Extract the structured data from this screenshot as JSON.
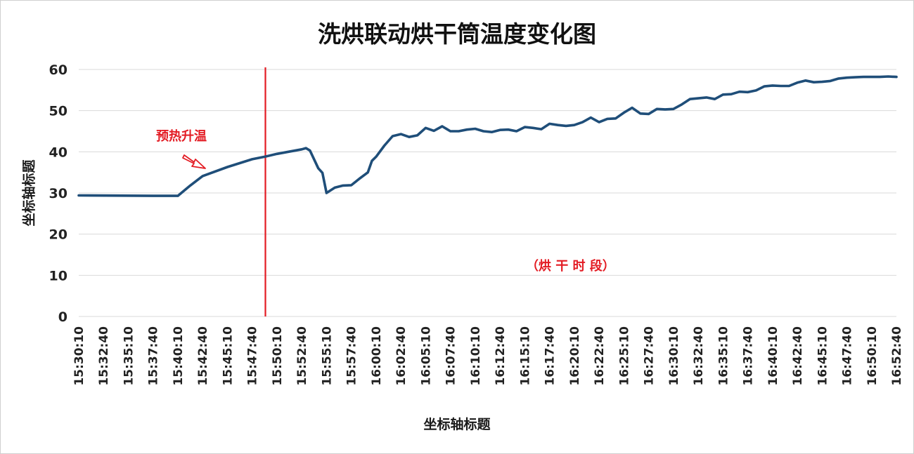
{
  "chart_data": {
    "type": "line",
    "title": "洗烘联动烘干筒温度变化图",
    "xlabel": "坐标轴标题",
    "ylabel": "坐标轴标题",
    "ylim": [
      0,
      60
    ],
    "yticks": [
      0,
      10,
      20,
      30,
      40,
      50,
      60
    ],
    "grid": "horizontal",
    "legend": "none",
    "colors": {
      "line": "#1f4e79",
      "marker_line": "#e31b23",
      "annotation": "#e31b23",
      "grid": "#d9d9d9"
    },
    "x_tick_labels": [
      "15:30:10",
      "15:32:40",
      "15:35:10",
      "15:37:40",
      "15:40:10",
      "15:42:40",
      "15:45:10",
      "15:47:40",
      "15:50:10",
      "15:52:40",
      "15:55:10",
      "15:57:40",
      "16:00:10",
      "16:02:40",
      "16:05:10",
      "16:07:40",
      "16:10:10",
      "16:12:40",
      "16:15:10",
      "16:17:40",
      "16:20:10",
      "16:22:40",
      "16:25:10",
      "16:27:40",
      "16:30:10",
      "16:32:40",
      "16:35:10",
      "16:37:40",
      "16:40:10",
      "16:42:40",
      "16:45:10",
      "16:47:40",
      "16:50:10",
      "16:52:40"
    ],
    "series": [
      {
        "x": [
          "15:30:10",
          "15:37:40",
          "15:40:10",
          "15:41:25",
          "15:42:40",
          "15:45:10",
          "15:47:40",
          "15:48:55",
          "15:50:10",
          "15:52:40",
          "15:53:05",
          "15:53:30",
          "15:54:20",
          "15:54:45",
          "15:55:10",
          "15:56:00",
          "15:56:50",
          "15:57:40",
          "15:58:30",
          "15:59:20",
          "15:59:45",
          "16:00:10",
          "16:01:00",
          "16:01:50",
          "16:02:40",
          "16:03:30",
          "16:04:20",
          "16:05:10",
          "16:06:00",
          "16:06:50",
          "16:07:40",
          "16:08:30",
          "16:09:20",
          "16:10:10",
          "16:11:00",
          "16:11:50",
          "16:12:40",
          "16:13:30",
          "16:14:20",
          "16:15:10",
          "16:16:00",
          "16:16:50",
          "16:17:40",
          "16:18:30",
          "16:19:20",
          "16:20:10",
          "16:21:00",
          "16:21:50",
          "16:22:40",
          "16:23:30",
          "16:24:20",
          "16:25:10",
          "16:26:00",
          "16:26:50",
          "16:27:40",
          "16:28:30",
          "16:29:20",
          "16:30:10",
          "16:31:00",
          "16:31:50",
          "16:32:40",
          "16:33:30",
          "16:34:20",
          "16:35:10",
          "16:36:00",
          "16:36:50",
          "16:37:40",
          "16:38:30",
          "16:39:20",
          "16:40:10",
          "16:41:00",
          "16:41:50",
          "16:42:40",
          "16:43:30",
          "16:44:20",
          "16:45:10",
          "16:46:00",
          "16:46:50",
          "16:47:40",
          "16:48:30",
          "16:49:20",
          "16:50:10",
          "16:51:00",
          "16:51:50",
          "16:52:40"
        ],
        "values": [
          29.4,
          29.3,
          29.3,
          31.8,
          34.1,
          36.3,
          38.2,
          38.8,
          39.5,
          40.6,
          40.9,
          40.3,
          36.0,
          34.9,
          30.0,
          31.3,
          31.8,
          31.9,
          33.5,
          35.0,
          37.8,
          38.8,
          41.5,
          43.8,
          44.3,
          43.6,
          44.0,
          45.8,
          45.1,
          46.2,
          45.0,
          45.0,
          45.4,
          45.6,
          45.0,
          44.8,
          45.3,
          45.4,
          45.0,
          46.0,
          45.8,
          45.5,
          46.8,
          46.5,
          46.3,
          46.5,
          47.2,
          48.3,
          47.2,
          48.0,
          48.1,
          49.5,
          50.7,
          49.3,
          49.2,
          50.4,
          50.3,
          50.4,
          51.5,
          52.8,
          53.0,
          53.2,
          52.8,
          53.9,
          54.0,
          54.6,
          54.5,
          54.9,
          55.9,
          56.1,
          56.0,
          56.0,
          56.8,
          57.3,
          56.9,
          57.0,
          57.2,
          57.8,
          58.0,
          58.1,
          58.2,
          58.2,
          58.2,
          58.3,
          58.2
        ]
      }
    ],
    "annotations": [
      {
        "text": "预热升温"
      },
      {
        "text": "（烘 干 时 段）"
      }
    ],
    "vertical_marker_x": "15:49:00"
  }
}
